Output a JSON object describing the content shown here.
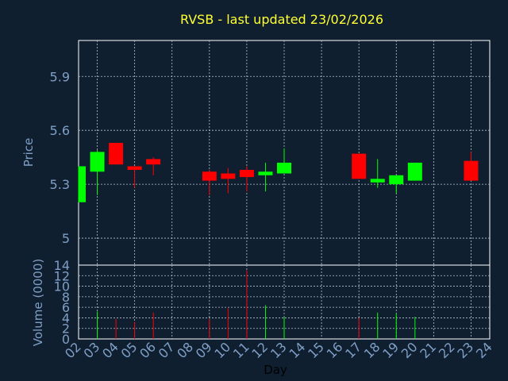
{
  "chart_data": [
    {
      "type": "candlestick",
      "title": "RVSB - last updated 23/02/2026",
      "ylabel": "Price",
      "ylim": [
        4.85,
        6.1
      ],
      "yticks": [
        5,
        5.3,
        5.6,
        5.9
      ],
      "ytick_labels": [
        "5",
        "5.3",
        "5.6",
        "5.9"
      ],
      "grid": true,
      "colors": {
        "up": "#00ff00",
        "down": "#ff0000",
        "grid": "#b8c4d0",
        "frame": "#ffffff"
      },
      "candles": [
        {
          "day": "02",
          "open": 5.2,
          "high": 5.4,
          "low": 5.2,
          "close": 5.4
        },
        {
          "day": "03",
          "open": 5.37,
          "high": 5.49,
          "low": 5.24,
          "close": 5.48
        },
        {
          "day": "04",
          "open": 5.53,
          "high": 5.53,
          "low": 5.41,
          "close": 5.41
        },
        {
          "day": "05",
          "open": 5.4,
          "high": 5.4,
          "low": 5.28,
          "close": 5.38
        },
        {
          "day": "06",
          "open": 5.44,
          "high": 5.45,
          "low": 5.35,
          "close": 5.41
        },
        {
          "day": "09",
          "open": 5.37,
          "high": 5.38,
          "low": 5.24,
          "close": 5.32
        },
        {
          "day": "10",
          "open": 5.36,
          "high": 5.39,
          "low": 5.25,
          "close": 5.33
        },
        {
          "day": "11",
          "open": 5.38,
          "high": 5.4,
          "low": 5.26,
          "close": 5.34
        },
        {
          "day": "12",
          "open": 5.35,
          "high": 5.42,
          "low": 5.26,
          "close": 5.37
        },
        {
          "day": "13",
          "open": 5.36,
          "high": 5.5,
          "low": 5.36,
          "close": 5.42
        },
        {
          "day": "17",
          "open": 5.47,
          "high": 5.47,
          "low": 5.33,
          "close": 5.33
        },
        {
          "day": "18",
          "open": 5.31,
          "high": 5.44,
          "low": 5.28,
          "close": 5.33
        },
        {
          "day": "19",
          "open": 5.3,
          "high": 5.35,
          "low": 5.25,
          "close": 5.35
        },
        {
          "day": "20",
          "open": 5.32,
          "high": 5.42,
          "low": 5.32,
          "close": 5.42
        },
        {
          "day": "23",
          "open": 5.43,
          "high": 5.48,
          "low": 5.32,
          "close": 5.32
        }
      ]
    },
    {
      "type": "bar",
      "ylabel": "Volume (0000)",
      "xlabel": "Day",
      "ylim": [
        0,
        14
      ],
      "yticks": [
        0,
        2,
        4,
        6,
        8,
        10,
        12,
        14
      ],
      "ytick_labels": [
        "0",
        "2",
        "4",
        "6",
        "8",
        "10",
        "12",
        "14"
      ],
      "grid": true,
      "categories": [
        "02",
        "03",
        "04",
        "05",
        "06",
        "07",
        "08",
        "09",
        "10",
        "11",
        "12",
        "13",
        "14",
        "15",
        "16",
        "17",
        "18",
        "19",
        "20",
        "21",
        "22",
        "23",
        "24"
      ],
      "values": [
        {
          "day": "03",
          "volume": 5.2,
          "direction": "up"
        },
        {
          "day": "04",
          "volume": 3.8,
          "direction": "down"
        },
        {
          "day": "05",
          "volume": 3.2,
          "direction": "down"
        },
        {
          "day": "06",
          "volume": 5.0,
          "direction": "down"
        },
        {
          "day": "09",
          "volume": 3.8,
          "direction": "down"
        },
        {
          "day": "10",
          "volume": 5.8,
          "direction": "down"
        },
        {
          "day": "11",
          "volume": 13.0,
          "direction": "down"
        },
        {
          "day": "12",
          "volume": 6.4,
          "direction": "up"
        },
        {
          "day": "13",
          "volume": 4.2,
          "direction": "up"
        },
        {
          "day": "17",
          "volume": 4.0,
          "direction": "down"
        },
        {
          "day": "18",
          "volume": 5.0,
          "direction": "up"
        },
        {
          "day": "19",
          "volume": 4.8,
          "direction": "up"
        },
        {
          "day": "20",
          "volume": 4.2,
          "direction": "up"
        }
      ]
    }
  ]
}
